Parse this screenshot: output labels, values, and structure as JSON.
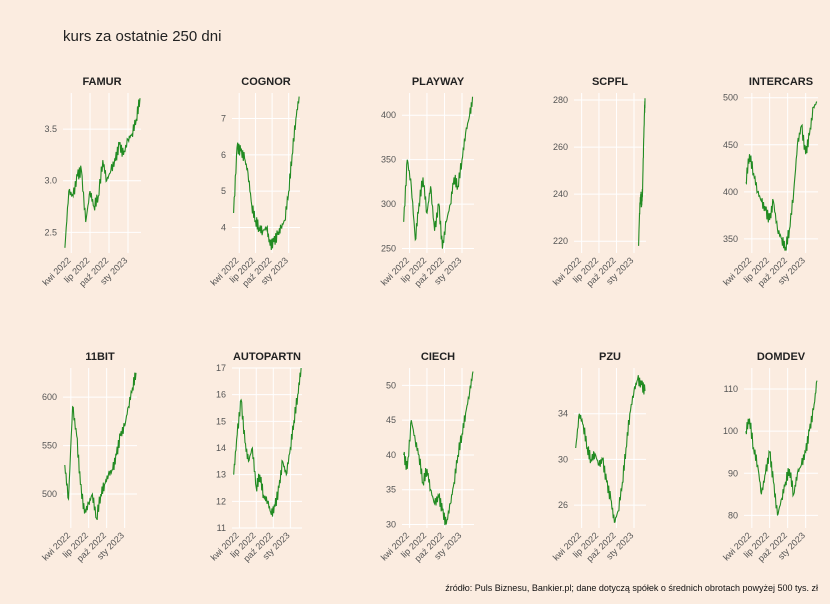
{
  "title": "kurs za ostatnie 250 dni",
  "source": "źródło: Puls Biznesu, Bankier.pl; dane dotyczą spółek o średnich obrotach powyżej 500 tys. zł",
  "colors": {
    "line": "#228b22",
    "background": "#fbece0",
    "grid": "#ffffff"
  },
  "chart_data": [
    {
      "type": "line",
      "title": "FAMUR",
      "x_ticks": [
        "kwi 2022",
        "lip 2022",
        "paź 2022",
        "sty 2023"
      ],
      "ylim": [
        2.3,
        3.85
      ],
      "y_ticks": [
        2.5,
        3.0,
        3.5
      ],
      "y_tick_labels": [
        "2.5",
        "3.0",
        "3.5"
      ],
      "x": [
        "2022-03-01",
        "2022-03-20",
        "2022-04-10",
        "2022-05-01",
        "2022-05-20",
        "2022-06-10",
        "2022-07-01",
        "2022-07-20",
        "2022-08-10",
        "2022-09-01",
        "2022-09-20",
        "2022-10-10",
        "2022-11-01",
        "2022-11-20",
        "2022-12-10",
        "2023-01-01",
        "2023-01-20",
        "2023-02-10",
        "2023-02-28"
      ],
      "y": [
        2.35,
        2.9,
        2.85,
        3.05,
        3.1,
        2.6,
        2.9,
        2.75,
        2.85,
        3.2,
        3.0,
        3.1,
        3.2,
        3.35,
        3.25,
        3.4,
        3.45,
        3.6,
        3.8
      ]
    },
    {
      "type": "line",
      "title": "COGNOR",
      "x_ticks": [
        "kwi 2022",
        "lip 2022",
        "paź 2022",
        "sty 2023"
      ],
      "ylim": [
        3.3,
        7.7
      ],
      "y_ticks": [
        4,
        5,
        6,
        7
      ],
      "y_tick_labels": [
        "4",
        "5",
        "6",
        "7"
      ],
      "x": [
        "2022-03-01",
        "2022-03-20",
        "2022-04-10",
        "2022-05-01",
        "2022-05-20",
        "2022-06-10",
        "2022-07-01",
        "2022-07-20",
        "2022-08-10",
        "2022-09-01",
        "2022-09-20",
        "2022-10-10",
        "2022-11-01",
        "2022-11-20",
        "2022-12-10",
        "2023-01-01",
        "2023-01-20",
        "2023-02-10",
        "2023-02-28"
      ],
      "y": [
        4.4,
        6.2,
        6.1,
        5.9,
        5.5,
        4.6,
        4.2,
        4.0,
        3.9,
        4.0,
        3.5,
        3.6,
        3.8,
        4.0,
        4.2,
        5.0,
        6.0,
        7.0,
        7.6
      ]
    },
    {
      "type": "line",
      "title": "PLAYWAY",
      "x_ticks": [
        "kwi 2022",
        "lip 2022",
        "paź 2022",
        "sty 2023"
      ],
      "ylim": [
        245,
        425
      ],
      "y_ticks": [
        250,
        300,
        350,
        400
      ],
      "y_tick_labels": [
        "250",
        "300",
        "350",
        "400"
      ],
      "x": [
        "2022-03-01",
        "2022-03-20",
        "2022-04-10",
        "2022-05-01",
        "2022-05-20",
        "2022-06-10",
        "2022-07-01",
        "2022-07-20",
        "2022-08-10",
        "2022-09-01",
        "2022-09-20",
        "2022-10-10",
        "2022-11-01",
        "2022-11-20",
        "2022-12-10",
        "2023-01-01",
        "2023-01-20",
        "2023-02-10",
        "2023-02-28"
      ],
      "y": [
        280,
        350,
        320,
        260,
        300,
        330,
        290,
        320,
        270,
        300,
        250,
        280,
        300,
        330,
        320,
        350,
        380,
        400,
        420
      ]
    },
    {
      "type": "line",
      "title": "SCPFL",
      "x_ticks": [
        "kwi 2022",
        "lip 2022",
        "paź 2022",
        "sty 2023"
      ],
      "ylim": [
        215,
        283
      ],
      "y_ticks": [
        220,
        240,
        260,
        280
      ],
      "y_tick_labels": [
        "220",
        "240",
        "260",
        "280"
      ],
      "x": [
        "2023-01-25",
        "2023-01-30",
        "2023-02-05",
        "2023-02-10",
        "2023-02-15",
        "2023-02-20",
        "2023-02-25",
        "2023-02-28"
      ],
      "y": [
        218,
        232,
        240,
        236,
        242,
        260,
        275,
        280
      ]
    },
    {
      "type": "line",
      "title": "INTERCARS",
      "x_ticks": [
        "kwi 2022",
        "lip 2022",
        "paź 2022",
        "sty 2023"
      ],
      "ylim": [
        335,
        505
      ],
      "y_ticks": [
        350,
        400,
        450,
        500
      ],
      "y_tick_labels": [
        "350",
        "400",
        "450",
        "500"
      ],
      "x": [
        "2022-03-01",
        "2022-03-20",
        "2022-04-10",
        "2022-05-01",
        "2022-05-20",
        "2022-06-10",
        "2022-07-01",
        "2022-07-20",
        "2022-08-10",
        "2022-09-01",
        "2022-09-20",
        "2022-10-10",
        "2022-11-01",
        "2022-11-20",
        "2022-12-10",
        "2023-01-01",
        "2023-01-20",
        "2023-02-10",
        "2023-02-28"
      ],
      "y": [
        410,
        440,
        420,
        400,
        390,
        380,
        370,
        390,
        360,
        350,
        340,
        360,
        400,
        450,
        470,
        440,
        460,
        490,
        495
      ]
    },
    {
      "type": "line",
      "title": "11BIT",
      "x_ticks": [
        "kwi 2022",
        "lip 2022",
        "paź 2022",
        "sty 2023"
      ],
      "ylim": [
        465,
        630
      ],
      "y_ticks": [
        500,
        550,
        600
      ],
      "y_tick_labels": [
        "500",
        "550",
        "600"
      ],
      "x": [
        "2022-03-01",
        "2022-03-20",
        "2022-04-10",
        "2022-05-01",
        "2022-05-20",
        "2022-06-10",
        "2022-07-01",
        "2022-07-20",
        "2022-08-10",
        "2022-09-01",
        "2022-09-20",
        "2022-10-10",
        "2022-11-01",
        "2022-11-20",
        "2022-12-10",
        "2023-01-01",
        "2023-01-20",
        "2023-02-10",
        "2023-02-28"
      ],
      "y": [
        530,
        495,
        590,
        560,
        510,
        480,
        490,
        500,
        475,
        500,
        510,
        520,
        525,
        540,
        560,
        570,
        590,
        610,
        625
      ]
    },
    {
      "type": "line",
      "title": "AUTOPARTN",
      "x_ticks": [
        "kwi 2022",
        "lip 2022",
        "paź 2022",
        "sty 2023"
      ],
      "ylim": [
        11,
        17
      ],
      "y_ticks": [
        11,
        12,
        13,
        14,
        15,
        16,
        17
      ],
      "y_tick_labels": [
        "11",
        "12",
        "13",
        "14",
        "15",
        "16",
        "17"
      ],
      "x": [
        "2022-03-01",
        "2022-03-20",
        "2022-04-10",
        "2022-05-01",
        "2022-05-20",
        "2022-06-10",
        "2022-07-01",
        "2022-07-20",
        "2022-08-10",
        "2022-09-01",
        "2022-09-20",
        "2022-10-10",
        "2022-11-01",
        "2022-11-20",
        "2022-12-10",
        "2023-01-01",
        "2023-01-20",
        "2023-02-10",
        "2023-02-28"
      ],
      "y": [
        13.0,
        14.5,
        15.8,
        14.2,
        13.5,
        14.0,
        12.5,
        13.0,
        12.2,
        12.0,
        11.5,
        11.8,
        12.5,
        13.5,
        13.0,
        14.0,
        15.0,
        16.0,
        17.0
      ]
    },
    {
      "type": "line",
      "title": "CIECH",
      "x_ticks": [
        "kwi 2022",
        "lip 2022",
        "paź 2022",
        "sty 2023"
      ],
      "ylim": [
        29.5,
        52.5
      ],
      "y_ticks": [
        30,
        35,
        40,
        45,
        50
      ],
      "y_tick_labels": [
        "30",
        "35",
        "40",
        "45",
        "50"
      ],
      "x": [
        "2022-03-01",
        "2022-03-20",
        "2022-04-10",
        "2022-05-01",
        "2022-05-20",
        "2022-06-10",
        "2022-07-01",
        "2022-07-20",
        "2022-08-10",
        "2022-09-01",
        "2022-09-20",
        "2022-10-10",
        "2022-11-01",
        "2022-11-20",
        "2022-12-10",
        "2023-01-01",
        "2023-01-20",
        "2023-02-10",
        "2023-02-28"
      ],
      "y": [
        40,
        38,
        45,
        42,
        40,
        36,
        38,
        35,
        33,
        34,
        32,
        30,
        33,
        36,
        40,
        43,
        46,
        49,
        52
      ]
    },
    {
      "type": "line",
      "title": "PZU",
      "x_ticks": [
        "kwi 2022",
        "lip 2022",
        "paź 2022",
        "sty 2023"
      ],
      "ylim": [
        24,
        38
      ],
      "y_ticks": [
        26,
        30,
        34
      ],
      "y_tick_labels": [
        "26",
        "30",
        "34"
      ],
      "x": [
        "2022-03-01",
        "2022-03-20",
        "2022-04-10",
        "2022-05-01",
        "2022-05-20",
        "2022-06-10",
        "2022-07-01",
        "2022-07-20",
        "2022-08-10",
        "2022-09-01",
        "2022-09-20",
        "2022-10-10",
        "2022-11-01",
        "2022-11-20",
        "2022-12-10",
        "2023-01-01",
        "2023-01-20",
        "2023-02-10",
        "2023-02-28"
      ],
      "y": [
        31,
        34,
        33,
        31,
        30,
        30.5,
        29.5,
        30,
        28,
        26.5,
        24.5,
        25.5,
        28,
        31,
        34,
        36,
        37,
        36.5,
        36
      ]
    },
    {
      "type": "line",
      "title": "DOMDEV",
      "x_ticks": [
        "kwi 2022",
        "lip 2022",
        "paź 2022",
        "sty 2023"
      ],
      "ylim": [
        77,
        115
      ],
      "y_ticks": [
        80,
        90,
        100,
        110
      ],
      "y_tick_labels": [
        "80",
        "90",
        "100",
        "110"
      ],
      "x": [
        "2022-03-01",
        "2022-03-20",
        "2022-04-10",
        "2022-05-01",
        "2022-05-20",
        "2022-06-10",
        "2022-07-01",
        "2022-07-20",
        "2022-08-10",
        "2022-09-01",
        "2022-09-20",
        "2022-10-10",
        "2022-11-01",
        "2022-11-20",
        "2022-12-10",
        "2023-01-01",
        "2023-01-20",
        "2023-02-10",
        "2023-02-28"
      ],
      "y": [
        100,
        103,
        96,
        92,
        85,
        90,
        95,
        88,
        80,
        84,
        88,
        91,
        85,
        90,
        92,
        95,
        100,
        105,
        112
      ]
    }
  ]
}
